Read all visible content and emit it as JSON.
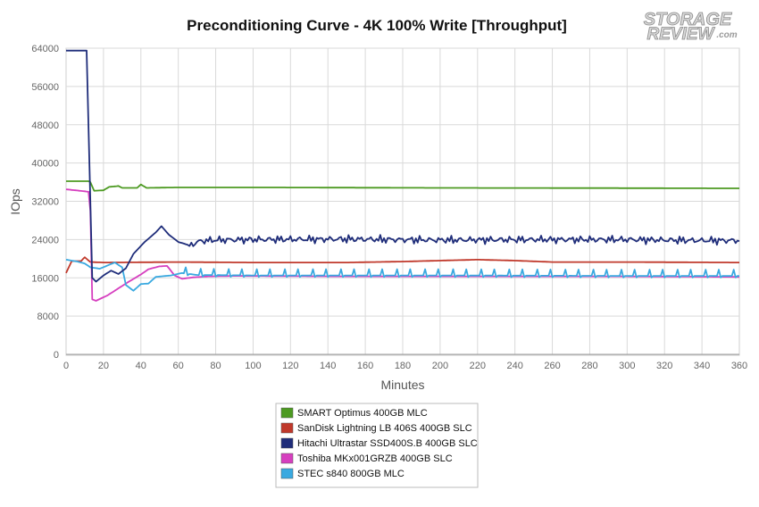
{
  "logo": {
    "line1": "STORAGE",
    "line2": "REVIEW",
    "suffix": ".com"
  },
  "chart_data": {
    "type": "line",
    "title": "Preconditioning Curve - 4K 100% Write [Throughput]",
    "xlabel": "Minutes",
    "ylabel": "IOps",
    "xlim": [
      0,
      360
    ],
    "ylim": [
      0,
      64000
    ],
    "xticks": [
      0,
      20,
      40,
      60,
      80,
      100,
      120,
      140,
      160,
      180,
      200,
      220,
      240,
      260,
      280,
      300,
      320,
      340,
      360
    ],
    "yticks": [
      0,
      8000,
      16000,
      24000,
      32000,
      40000,
      48000,
      56000,
      64000
    ],
    "grid": true,
    "legend_position": "bottom-center",
    "series": [
      {
        "name": "SMART Optimus 400GB MLC",
        "color": "#4d9a22",
        "points": [
          [
            0,
            36200
          ],
          [
            12,
            36200
          ],
          [
            13,
            36000
          ],
          [
            15,
            34200
          ],
          [
            20,
            34300
          ],
          [
            23,
            35000
          ],
          [
            28,
            35200
          ],
          [
            30,
            34800
          ],
          [
            38,
            34800
          ],
          [
            40,
            35500
          ],
          [
            43,
            34800
          ],
          [
            60,
            34900
          ],
          [
            100,
            34900
          ],
          [
            200,
            34800
          ],
          [
            300,
            34750
          ],
          [
            360,
            34700
          ]
        ]
      },
      {
        "name": "SanDisk Lightning LB 406S 400GB SLC",
        "color": "#c0392b",
        "points": [
          [
            0,
            17000
          ],
          [
            3,
            19500
          ],
          [
            8,
            19500
          ],
          [
            10,
            20300
          ],
          [
            13,
            19300
          ],
          [
            20,
            19200
          ],
          [
            60,
            19300
          ],
          [
            100,
            19200
          ],
          [
            150,
            19200
          ],
          [
            180,
            19400
          ],
          [
            200,
            19600
          ],
          [
            220,
            19800
          ],
          [
            240,
            19600
          ],
          [
            260,
            19300
          ],
          [
            300,
            19300
          ],
          [
            360,
            19200
          ]
        ]
      },
      {
        "name": "Hitachi Ultrastar SSD400S.B 400GB SLC",
        "color": "#1f2d7a",
        "points": [
          [
            0,
            63500
          ],
          [
            11,
            63500
          ],
          [
            14,
            16000
          ],
          [
            16,
            15200
          ],
          [
            20,
            16500
          ],
          [
            24,
            17500
          ],
          [
            28,
            16800
          ],
          [
            32,
            18000
          ],
          [
            36,
            21000
          ],
          [
            42,
            23500
          ],
          [
            48,
            25500
          ],
          [
            51,
            26800
          ],
          [
            55,
            25000
          ],
          [
            60,
            23500
          ],
          [
            66,
            22800
          ],
          [
            72,
            23700
          ],
          [
            80,
            23900
          ],
          [
            100,
            24000
          ],
          [
            150,
            24100
          ],
          [
            200,
            23900
          ],
          [
            250,
            24000
          ],
          [
            300,
            24000
          ],
          [
            340,
            23800
          ],
          [
            360,
            23800
          ]
        ],
        "noise": 700,
        "noise_from": 66
      },
      {
        "name": "Toshiba MKx001GRZB 400GB SLC",
        "color": "#d63fbf",
        "points": [
          [
            0,
            34500
          ],
          [
            12,
            34000
          ],
          [
            13,
            30000
          ],
          [
            14,
            11500
          ],
          [
            16,
            11200
          ],
          [
            22,
            12300
          ],
          [
            28,
            13800
          ],
          [
            34,
            15300
          ],
          [
            40,
            16700
          ],
          [
            44,
            17800
          ],
          [
            50,
            18400
          ],
          [
            54,
            18500
          ],
          [
            58,
            16500
          ],
          [
            62,
            15800
          ],
          [
            68,
            16100
          ],
          [
            76,
            16300
          ],
          [
            90,
            16400
          ],
          [
            150,
            16300
          ],
          [
            250,
            16300
          ],
          [
            300,
            16300
          ],
          [
            360,
            16200
          ]
        ]
      },
      {
        "name": "STEC s840 800GB MLC",
        "color": "#3aa9e0",
        "points": [
          [
            0,
            19800
          ],
          [
            6,
            19400
          ],
          [
            10,
            19000
          ],
          [
            13,
            18200
          ],
          [
            18,
            17900
          ],
          [
            26,
            19200
          ],
          [
            30,
            18200
          ],
          [
            32,
            14500
          ],
          [
            36,
            13300
          ],
          [
            40,
            14700
          ],
          [
            44,
            14800
          ],
          [
            48,
            16200
          ],
          [
            56,
            16500
          ],
          [
            62,
            17000
          ],
          [
            70,
            16600
          ],
          [
            100,
            16500
          ],
          [
            200,
            16500
          ],
          [
            300,
            16400
          ],
          [
            360,
            16400
          ]
        ],
        "spikes": 1300,
        "spike_from": 64
      }
    ]
  }
}
